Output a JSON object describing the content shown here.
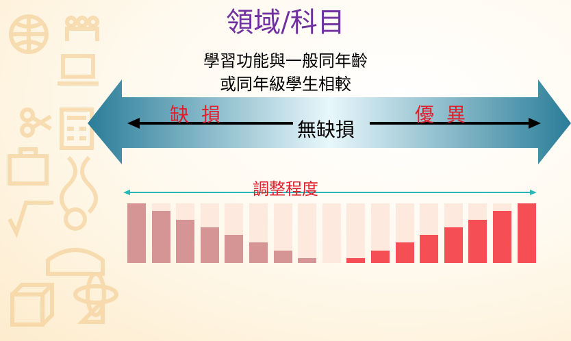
{
  "title": "領域/科目",
  "subtitle_line1": "學習功能與一般同年齡",
  "subtitle_line2": "或同年級學生相較",
  "left_label": "缺損",
  "right_label": "優異",
  "center_label": "無缺損",
  "adjust_label": "調整程度",
  "colors": {
    "title": "#7030a0",
    "label_red": "#e0202c",
    "arrow_dark": "#2a7d99",
    "arrow_light": "#e8f7fb",
    "bar_left": "#d69595",
    "bar_right": "#f54f55",
    "bar_empty": "#fde9dd",
    "teal_line": "#2ab7b7"
  },
  "bars": [
    {
      "level": 1.0,
      "side": "left"
    },
    {
      "level": 0.87,
      "side": "left"
    },
    {
      "level": 0.73,
      "side": "left"
    },
    {
      "level": 0.6,
      "side": "left"
    },
    {
      "level": 0.47,
      "side": "left"
    },
    {
      "level": 0.34,
      "side": "left"
    },
    {
      "level": 0.21,
      "side": "left"
    },
    {
      "level": 0.08,
      "side": "left"
    },
    {
      "level": 0.0,
      "side": "none"
    },
    {
      "level": 0.08,
      "side": "right"
    },
    {
      "level": 0.21,
      "side": "right"
    },
    {
      "level": 0.34,
      "side": "right"
    },
    {
      "level": 0.47,
      "side": "right"
    },
    {
      "level": 0.6,
      "side": "right"
    },
    {
      "level": 0.73,
      "side": "right"
    },
    {
      "level": 0.87,
      "side": "right"
    },
    {
      "level": 1.0,
      "side": "right"
    }
  ],
  "decor_icons": [
    "globe-icon",
    "people-icon",
    "laptop-icon",
    "scissors-icon",
    "calculator-icon",
    "briefcase-icon",
    "dna-icon",
    "sqrt-123-icon",
    "reading-person-icon",
    "atom-icon",
    "cube-icon",
    "ruler-triangle-icon"
  ]
}
